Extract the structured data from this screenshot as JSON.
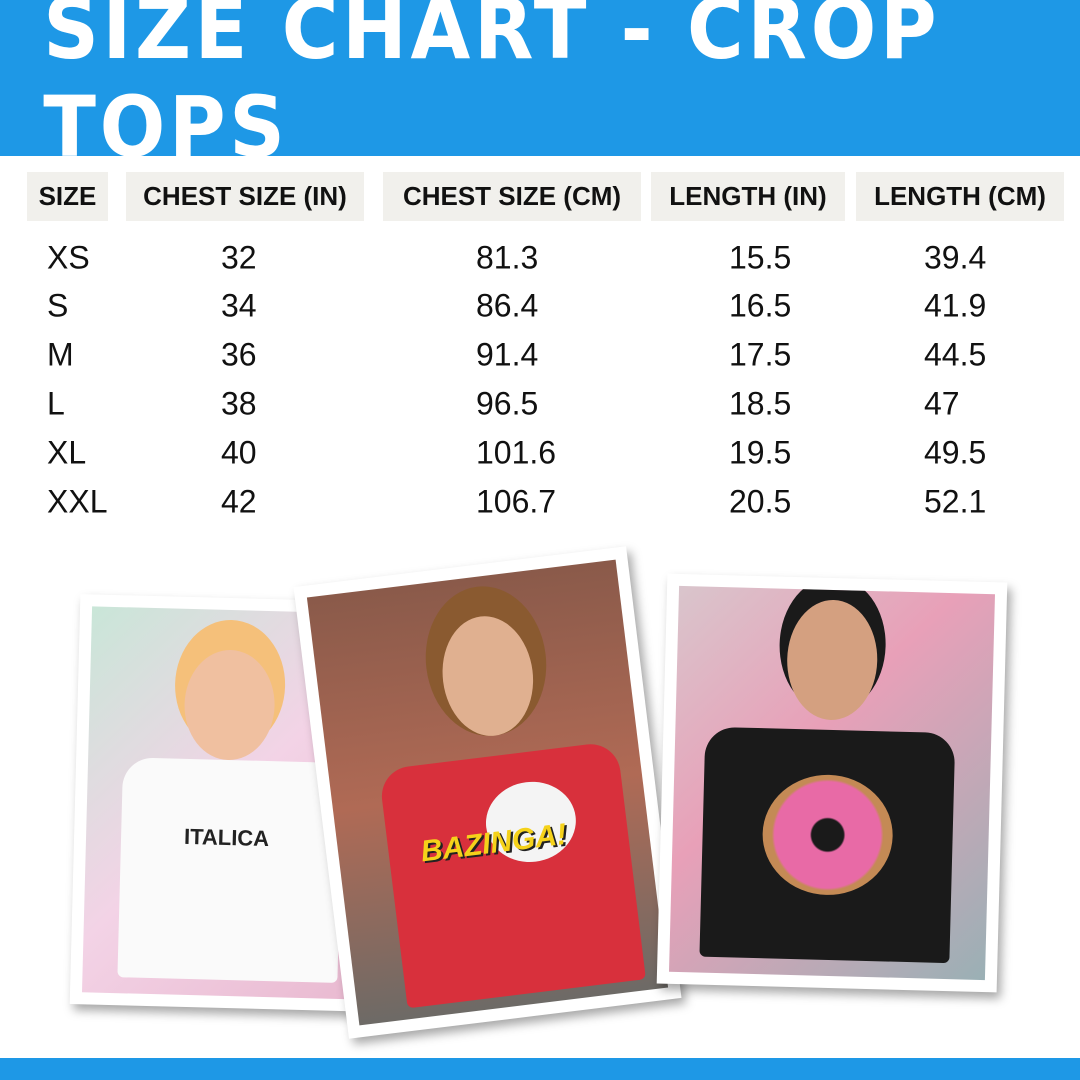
{
  "title": "SIZE CHART - CROP TOPS",
  "colors": {
    "brand": "#1e98e6",
    "header_bg": "#f1f0ec"
  },
  "table": {
    "headers": [
      "SIZE",
      "CHEST SIZE (IN)",
      "CHEST SIZE (CM)",
      "LENGTH (IN)",
      "LENGTH (CM)"
    ],
    "rows": [
      [
        "XS",
        "32",
        "81.3",
        "15.5",
        "39.4"
      ],
      [
        "S",
        "34",
        "86.4",
        "16.5",
        "41.9"
      ],
      [
        "M",
        "36",
        "91.4",
        "17.5",
        "44.5"
      ],
      [
        "L",
        "38",
        "96.5",
        "18.5",
        "47"
      ],
      [
        "XL",
        "40",
        "101.6",
        "19.5",
        "49.5"
      ],
      [
        "XXL",
        "42",
        "106.7",
        "20.5",
        "52.1"
      ]
    ]
  },
  "photos": [
    {
      "shirt_color": "#ffffff",
      "print": "ITALICA"
    },
    {
      "shirt_color": "#d8303c",
      "print": "BAZINGA!"
    },
    {
      "shirt_color": "#1a1a1a",
      "print": "donut"
    }
  ]
}
